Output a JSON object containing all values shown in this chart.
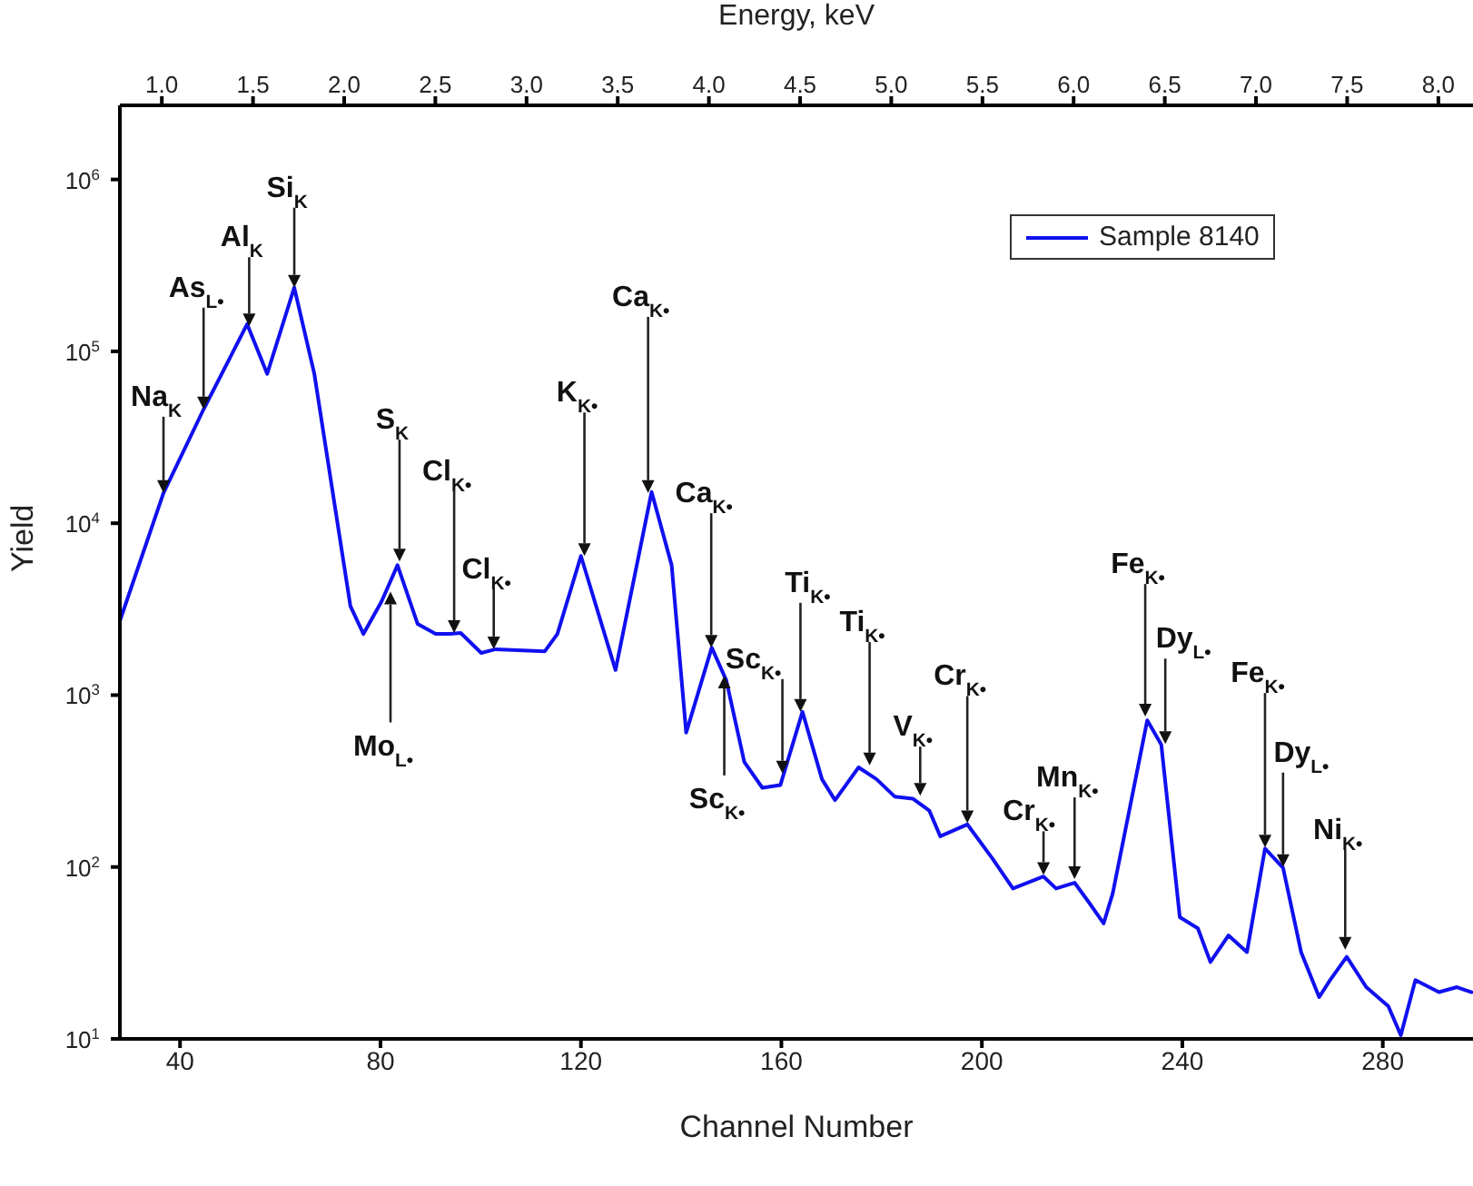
{
  "chart_data": {
    "type": "line",
    "xlabel": "Channel Number",
    "ylabel": "Yield",
    "x2label": "Energy, keV",
    "xlim": [
      28,
      298
    ],
    "xticks": [
      40,
      80,
      120,
      160,
      200,
      240,
      280
    ],
    "x2lim": [
      0.77,
      8.19
    ],
    "x2ticks": [
      {
        "value": 1,
        "label": "1.0"
      },
      1.5,
      {
        "value": 2,
        "label": "2.0"
      },
      2.5,
      {
        "value": 3,
        "label": "3.0"
      },
      3.5,
      {
        "value": 4,
        "label": "4.0"
      },
      4.5,
      {
        "value": 5,
        "label": "5.0"
      },
      5.5,
      {
        "value": 6,
        "label": "6.0"
      },
      6.5,
      {
        "value": 7,
        "label": "7.0"
      },
      7.5,
      {
        "value": 8,
        "label": "8.0"
      }
    ],
    "log": "y",
    "ylim": [
      10,
      2700000
    ],
    "yticks": [
      {
        "value": 10,
        "label": "10$^{1}$"
      },
      {
        "value": 100,
        "label": "10$^{2}$"
      },
      {
        "value": 1000,
        "label": "10$^{3}$"
      },
      {
        "value": 10000,
        "label": "10$^{4}$"
      },
      {
        "value": 100000,
        "label": "10$^{5}$"
      },
      {
        "value": 1000000,
        "label": "10$^{6}$"
      }
    ],
    "legend": "top right",
    "grid": false,
    "marker": "none",
    "line_style": "solid",
    "x": [
      28,
      36.7,
      44.7,
      53.4,
      57.4,
      62.8,
      66.8,
      70.4,
      74,
      76.6,
      80.2,
      83.4,
      87.4,
      91,
      93.9,
      96,
      100.1,
      103,
      112.8,
      115.3,
      120,
      126.9,
      134.1,
      138.1,
      141,
      146.1,
      149,
      152.6,
      156.2,
      159.8,
      164.2,
      168.1,
      170.7,
      175.4,
      179,
      182.6,
      186.2,
      189.5,
      191.7,
      197.1,
      202.2,
      206.2,
      212.3,
      214.8,
      218.5,
      221.4,
      224.3,
      226.1,
      233,
      235.8,
      239.5,
      243.1,
      245.6,
      249.2,
      252.9,
      256.5,
      260.1,
      263.7,
      267.3,
      269.5,
      272.8,
      276.7,
      281.1,
      283.6,
      286.5,
      291.2,
      294.8,
      297.7
    ],
    "series": [
      {
        "name": "Sample 8140",
        "color": "#1010f0",
        "values": [
          2700,
          15000,
          46000,
          144000,
          74000,
          235000,
          74000,
          15600,
          3300,
          2270,
          3500,
          5700,
          2600,
          2270,
          2270,
          2300,
          1760,
          1850,
          1800,
          2270,
          6450,
          1400,
          15200,
          5700,
          605,
          1890,
          1220,
          408,
          289,
          300,
          800,
          324,
          245,
          380,
          324,
          257,
          250,
          213,
          151,
          177,
          111,
          75,
          88,
          75,
          81,
          62,
          47,
          70,
          713,
          515,
          51,
          44,
          28,
          40,
          32,
          128,
          99,
          32,
          17.5,
          22,
          30,
          20,
          15.5,
          10.5,
          22,
          18.7,
          20,
          18.7
        ]
      }
    ],
    "annotations": [
      {
        "text": "Na$_{K}$",
        "x": 36.7,
        "y": 15000
      },
      {
        "text": "As$_{L•}$",
        "x": 44.7,
        "y": 46000
      },
      {
        "text": "Al$_{K}$",
        "x": 53.8,
        "y": 140000
      },
      {
        "text": "Si$_{K}$",
        "x": 62.8,
        "y": 235000
      },
      {
        "text": "S$_{K}$",
        "x": 83.8,
        "y": 6000
      },
      {
        "text": "Cl$_{K•}$",
        "x": 94.7,
        "y": 2300
      },
      {
        "text": "Cl$_{K•}$",
        "x": 102.6,
        "y": 1850
      },
      {
        "text": "Mo$_{L•}$",
        "x": 82,
        "y": 4000
      },
      {
        "text": "K$_{K•}$",
        "x": 120.7,
        "y": 6450
      },
      {
        "text": "Ca$_{K•}$",
        "x": 133.4,
        "y": 15000
      },
      {
        "text": "Ca$_{K•}$",
        "x": 146,
        "y": 1890
      },
      {
        "text": "Sc$_{K•}$",
        "x": 148.6,
        "y": 1300
      },
      {
        "text": "Sc$_{K•}$",
        "x": 160.2,
        "y": 350
      },
      {
        "text": "Ti$_{K•}$",
        "x": 163.8,
        "y": 800
      },
      {
        "text": "Ti$_{K•}$",
        "x": 177.6,
        "y": 390
      },
      {
        "text": "V$_{K•}$",
        "x": 187.7,
        "y": 260
      },
      {
        "text": "Cr$_{K•}$",
        "x": 197.1,
        "y": 180
      },
      {
        "text": "Cr$_{K•}$",
        "x": 212.3,
        "y": 90
      },
      {
        "text": "Mn$_{K•}$",
        "x": 218.5,
        "y": 85
      },
      {
        "text": "Fe$_{K•}$",
        "x": 232.6,
        "y": 750
      },
      {
        "text": "Dy$_{L•}$",
        "x": 236.6,
        "y": 520
      },
      {
        "text": "Fe$_{K•}$",
        "x": 256.5,
        "y": 130
      },
      {
        "text": "Dy$_{L•}$",
        "x": 260.1,
        "y": 100
      },
      {
        "text": "Ni$_{K•}$",
        "x": 272.5,
        "y": 33
      }
    ]
  }
}
